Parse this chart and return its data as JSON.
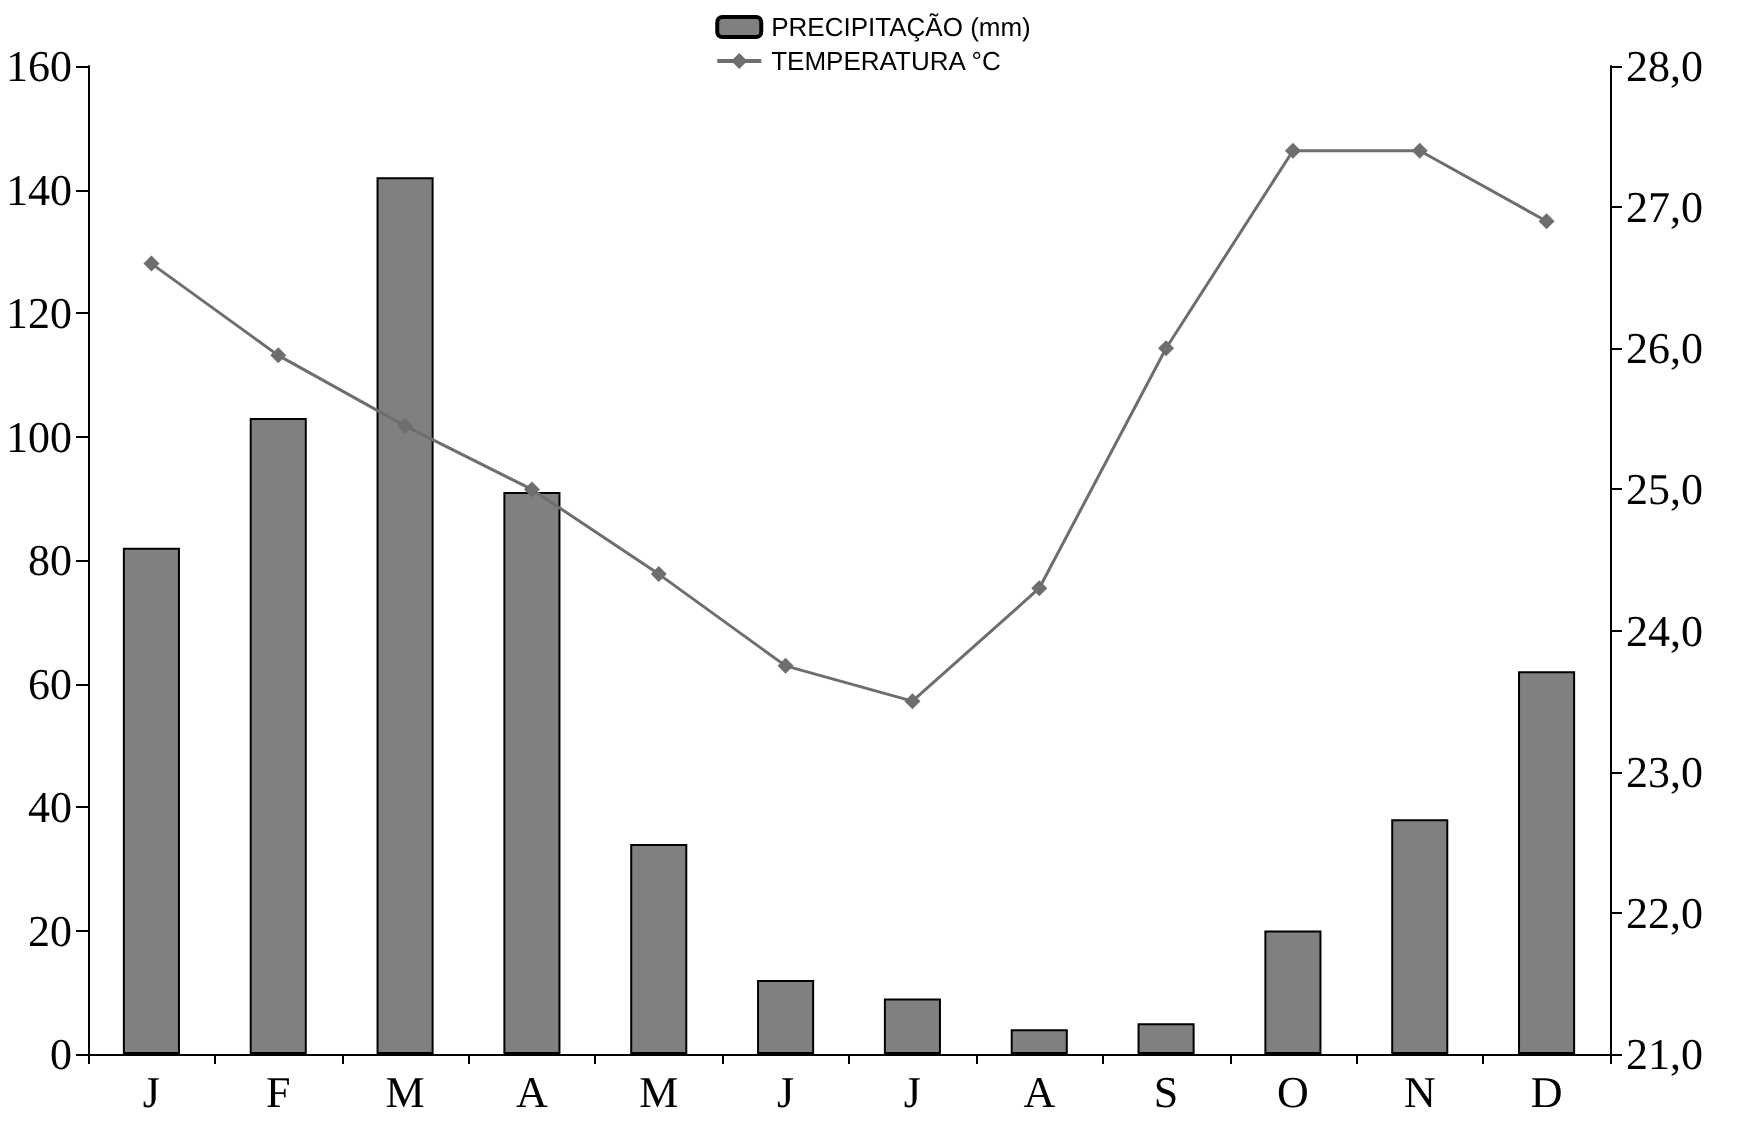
{
  "chart_data": {
    "type": "bar",
    "categories": [
      "J",
      "F",
      "M",
      "A",
      "M",
      "J",
      "J",
      "A",
      "S",
      "O",
      "N",
      "D"
    ],
    "series": [
      {
        "name": "PRECIPITAÇÃO (mm)",
        "color": "#808080",
        "values": [
          82,
          103,
          142,
          91,
          34,
          12,
          9,
          4,
          5,
          20,
          38,
          62
        ]
      },
      {
        "name": "TEMPERATURA °C",
        "type": "line",
        "axis": "y2",
        "color": "#6e6e6e",
        "marker": "diamond",
        "values": [
          26.6,
          25.95,
          25.45,
          25.0,
          24.4,
          23.75,
          23.5,
          24.3,
          26.0,
          27.4,
          27.4,
          26.9
        ]
      }
    ],
    "ylim": [
      0,
      160
    ],
    "yticks": [
      0,
      20,
      40,
      60,
      80,
      100,
      120,
      140,
      160
    ],
    "y2lim": [
      21,
      28
    ],
    "y2ticks": [
      {
        "value": 21,
        "label": "21,0"
      },
      {
        "value": 22,
        "label": "22,0"
      },
      {
        "value": 23,
        "label": "23,0"
      },
      {
        "value": 24,
        "label": "24,0"
      },
      {
        "value": 25,
        "label": "25,0"
      },
      {
        "value": 26,
        "label": "26,0"
      },
      {
        "value": 27,
        "label": "27,0"
      },
      {
        "value": 28,
        "label": "28,0"
      }
    ],
    "grid": false,
    "legend": "top"
  }
}
